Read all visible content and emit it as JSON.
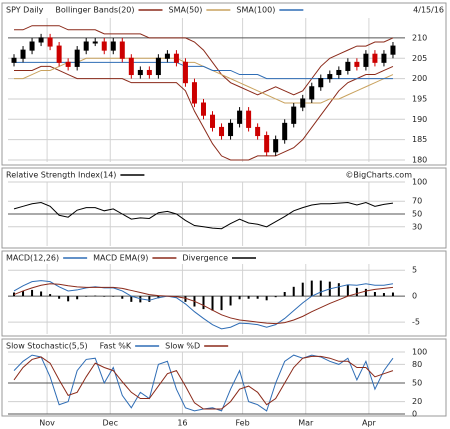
{
  "chart_data": [
    {
      "type": "candlestick",
      "title": "SPY Daily",
      "date": "4/15/16",
      "x": [
        0,
        3,
        6,
        9,
        12,
        15,
        18,
        21,
        24,
        27,
        30,
        33,
        36,
        39,
        42,
        45,
        48,
        51,
        54,
        57,
        60,
        63,
        66,
        69,
        72,
        75,
        78,
        81,
        84,
        87,
        90,
        93,
        96,
        99,
        102,
        105,
        108,
        111,
        114,
        117,
        120,
        123,
        126
      ],
      "xlim": [
        -2,
        130
      ],
      "xticks": [
        {
          "value": 11,
          "label": "Nov"
        },
        {
          "value": 32,
          "label": "Dec"
        },
        {
          "value": 56,
          "label": "16"
        },
        {
          "value": 76,
          "label": "Feb"
        },
        {
          "value": 97,
          "label": "Mar"
        },
        {
          "value": 118,
          "label": "Apr"
        }
      ],
      "ylim": [
        179.5,
        214.9
      ],
      "yticks": [
        180,
        185,
        190,
        195,
        200,
        205,
        210
      ],
      "grid": true,
      "up_color": "#000000",
      "down_color": "#cc0000",
      "open": [
        204,
        205,
        207,
        209,
        210,
        208,
        204,
        203,
        207,
        209,
        209,
        207,
        209,
        205,
        201,
        202,
        201,
        205,
        206,
        204,
        199,
        194,
        191,
        188,
        186,
        189,
        192,
        188,
        186,
        182,
        185,
        189,
        193,
        195,
        198,
        200,
        201,
        202,
        204,
        203,
        206,
        204,
        206
      ],
      "high": [
        206,
        208,
        210,
        211,
        211,
        209,
        205,
        208,
        210,
        210,
        210,
        210,
        210,
        206,
        203,
        203,
        206,
        207,
        207,
        205,
        200,
        195,
        192,
        189,
        190,
        193,
        193,
        189,
        187,
        186,
        190,
        194,
        196,
        199,
        201,
        202,
        203,
        205,
        205,
        207,
        207,
        207,
        209
      ],
      "low": [
        203,
        204,
        206,
        208,
        207,
        203,
        202,
        202,
        206,
        208,
        206,
        206,
        204,
        200,
        200,
        200,
        200,
        204,
        203,
        198,
        193,
        190,
        187,
        185,
        185,
        188,
        187,
        185,
        181,
        181,
        184,
        188,
        192,
        194,
        197,
        199,
        200,
        201,
        202,
        202,
        203,
        203,
        205
      ],
      "close": [
        205,
        207,
        209,
        210,
        208,
        204,
        203,
        207,
        209,
        209,
        207,
        209,
        205,
        201,
        202,
        201,
        205,
        206,
        204,
        199,
        194,
        191,
        188,
        186,
        189,
        192,
        188,
        186,
        182,
        185,
        189,
        193,
        195,
        198,
        200,
        201,
        202,
        204,
        203,
        206,
        204,
        206,
        208
      ],
      "series": [
        {
          "name": "Bollinger Bands(20)",
          "color": "#8b2a1a",
          "upper": [
            212,
            212,
            213,
            213,
            213,
            213,
            212,
            212,
            212,
            212,
            211,
            211,
            211,
            211,
            211,
            210,
            210,
            210,
            210,
            210,
            209,
            207,
            204,
            201,
            199,
            198,
            197,
            196,
            197,
            198,
            197,
            196,
            197,
            200,
            203,
            205,
            206,
            207,
            208,
            208,
            209,
            209,
            210
          ],
          "lower": [
            202,
            202,
            202,
            203,
            203,
            202,
            201,
            200,
            200,
            200,
            200,
            200,
            200,
            199,
            199,
            199,
            199,
            199,
            199,
            197,
            192,
            188,
            184,
            181,
            180,
            180,
            180,
            181,
            181,
            181,
            182,
            183,
            185,
            188,
            191,
            194,
            197,
            199,
            200,
            201,
            201,
            202,
            203
          ]
        },
        {
          "name": "SMA(50)",
          "color": "#c9a25e",
          "values": [
            200,
            200,
            201,
            202,
            202,
            203,
            204,
            204,
            205,
            205,
            205,
            205,
            205,
            205,
            205,
            205,
            205,
            205,
            205,
            204,
            204,
            203,
            202,
            201,
            200,
            199,
            198,
            197,
            196,
            195,
            194,
            194,
            194,
            194,
            194,
            195,
            195,
            196,
            197,
            198,
            199,
            200,
            201
          ]
        },
        {
          "name": "SMA(100)",
          "color": "#2f6db5",
          "values": [
            204,
            204,
            204,
            204,
            204,
            204,
            204,
            204,
            204,
            204,
            204,
            204,
            204,
            204,
            204,
            204,
            204,
            204,
            204,
            203,
            203,
            203,
            202,
            202,
            202,
            201,
            201,
            201,
            200,
            200,
            200,
            200,
            200,
            200,
            200,
            200,
            200,
            200,
            200,
            200,
            200,
            200,
            200
          ]
        }
      ]
    },
    {
      "type": "line",
      "title": "Relative Strength Index(14)",
      "source": "©BigCharts.com",
      "ylim": [
        0,
        100
      ],
      "yticks": [
        30,
        50,
        70,
        100
      ],
      "grid": true,
      "series": [
        {
          "color": "#000000",
          "values": [
            58,
            62,
            66,
            68,
            62,
            48,
            45,
            56,
            60,
            60,
            55,
            58,
            50,
            42,
            44,
            43,
            52,
            54,
            50,
            40,
            32,
            30,
            28,
            27,
            35,
            42,
            36,
            34,
            30,
            38,
            46,
            55,
            60,
            64,
            66,
            66,
            67,
            68,
            64,
            68,
            62,
            65,
            67
          ]
        }
      ]
    },
    {
      "type": "line",
      "ylim": [
        -7.3,
        6.2
      ],
      "yticks": [
        -5,
        0,
        5
      ],
      "grid": true,
      "series": [
        {
          "name": "MACD(12,26)",
          "color": "#2f6db5",
          "values": [
            1,
            2,
            2.8,
            3,
            2.8,
            1.8,
            1,
            1.2,
            1.6,
            1.8,
            1.6,
            1.6,
            1,
            0,
            -0.5,
            -0.8,
            -0.3,
            0,
            -0.3,
            -1.5,
            -3,
            -4.3,
            -5.5,
            -6.3,
            -6,
            -5.2,
            -5.3,
            -5.5,
            -6,
            -5.5,
            -4.3,
            -2.8,
            -1.3,
            0,
            0.8,
            1.4,
            1.8,
            2.2,
            2.1,
            2.4,
            2.1,
            2.1,
            2.4
          ]
        },
        {
          "name": "MACD EMA(9)",
          "color": "#8b2a1a",
          "values": [
            0.3,
            1,
            1.6,
            2.1,
            2.4,
            2.3,
            2,
            1.8,
            1.7,
            1.7,
            1.7,
            1.7,
            1.5,
            1.1,
            0.7,
            0.3,
            0.1,
            0,
            -0.1,
            -0.4,
            -1,
            -1.8,
            -2.7,
            -3.6,
            -4.2,
            -4.6,
            -4.8,
            -5,
            -5.2,
            -5.3,
            -5.1,
            -4.6,
            -3.9,
            -3,
            -2.2,
            -1.4,
            -0.7,
            0,
            0.5,
            1,
            1.3,
            1.5,
            1.7
          ]
        },
        {
          "name": "Divergence",
          "color": "#000000",
          "style": "bar",
          "values": [
            0.7,
            1,
            1.2,
            0.9,
            0.4,
            -0.5,
            -1,
            -0.6,
            -0.1,
            0.1,
            -0.1,
            -0.1,
            -0.5,
            -1.1,
            -1.2,
            -1.1,
            -0.4,
            0,
            -0.2,
            -1.1,
            -2,
            -2.5,
            -2.8,
            -2.7,
            -1.8,
            -0.6,
            -0.5,
            -0.5,
            -0.8,
            -0.2,
            0.8,
            1.8,
            2.6,
            3,
            3,
            2.8,
            2.5,
            2.2,
            1.6,
            1.4,
            0.8,
            0.6,
            0.7
          ]
        }
      ]
    },
    {
      "type": "line",
      "title": "Slow Stochastic(5,5)",
      "ylim": [
        0,
        100
      ],
      "yticks": [
        0,
        20,
        50,
        80,
        100
      ],
      "grid": true,
      "series": [
        {
          "name": "Fast %K",
          "color": "#2f6db5",
          "values": [
            70,
            85,
            95,
            92,
            60,
            15,
            20,
            70,
            88,
            90,
            50,
            75,
            30,
            10,
            35,
            25,
            80,
            85,
            40,
            10,
            5,
            8,
            10,
            5,
            40,
            70,
            20,
            15,
            5,
            50,
            85,
            95,
            90,
            95,
            92,
            85,
            80,
            90,
            55,
            85,
            40,
            70,
            90
          ]
        },
        {
          "name": "Slow %D",
          "color": "#8b2a1a",
          "values": [
            55,
            75,
            88,
            92,
            82,
            55,
            30,
            35,
            60,
            82,
            75,
            70,
            52,
            35,
            25,
            25,
            45,
            65,
            70,
            45,
            18,
            8,
            8,
            8,
            20,
            40,
            45,
            35,
            15,
            25,
            50,
            75,
            90,
            93,
            93,
            90,
            85,
            85,
            75,
            75,
            60,
            65,
            70
          ]
        }
      ]
    }
  ]
}
